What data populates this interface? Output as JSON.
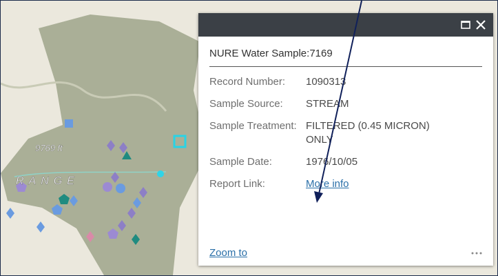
{
  "map": {
    "labels": [
      "9769 ft",
      "RANGE"
    ]
  },
  "popup": {
    "title": "NURE Water Sample:7169",
    "fields": [
      {
        "label": "Record Number:",
        "value": "1090313"
      },
      {
        "label": "Sample Source:",
        "value": "STREAM"
      },
      {
        "label": "Sample Treatment:",
        "value": "FILTERED (0.45 MICRON) ONLY"
      },
      {
        "label": "Sample Date:",
        "value": "1976/10/05"
      },
      {
        "label": "Report Link:",
        "value": "More info"
      }
    ],
    "zoom": "Zoom to"
  }
}
